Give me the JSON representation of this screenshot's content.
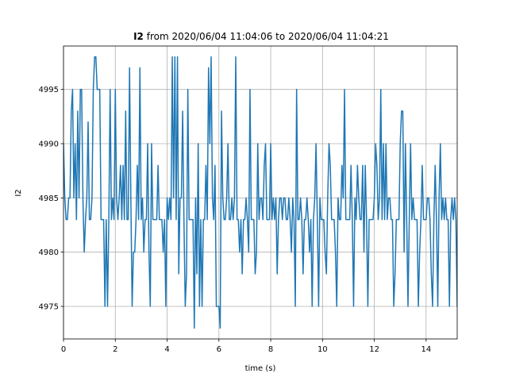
{
  "chart_data": {
    "type": "line",
    "title_bold": "I2",
    "title_rest": " from 2020/06/04 11:04:06 to 2020/06/04 11:04:21",
    "xlabel": "time (s)",
    "ylabel": "I2",
    "xlim": [
      0,
      15.2
    ],
    "ylim": [
      4972,
      4999
    ],
    "xticks": [
      0,
      2,
      4,
      6,
      8,
      10,
      12,
      14
    ],
    "xtick_labels": [
      "0",
      "2",
      "4",
      "6",
      "8",
      "10",
      "12",
      "14"
    ],
    "yticks": [
      4975,
      4980,
      4985,
      4990,
      4995
    ],
    "ytick_labels": [
      "4975",
      "4980",
      "4985",
      "4990",
      "4995"
    ],
    "grid": true,
    "color": "#1f77b4",
    "series": [
      {
        "x": [
          0.0,
          0.05,
          0.1,
          0.15,
          0.2,
          0.25,
          0.3,
          0.35,
          0.4,
          0.45,
          0.5,
          0.55,
          0.6,
          0.65,
          0.7,
          0.75,
          0.8,
          0.85,
          0.9,
          0.95,
          1.0,
          1.05,
          1.1,
          1.15,
          1.2,
          1.25,
          1.3,
          1.35,
          1.4,
          1.45,
          1.5,
          1.55,
          1.6,
          1.65,
          1.7,
          1.75,
          1.8,
          1.85,
          1.9,
          1.95,
          2.0,
          2.05,
          2.1,
          2.15,
          2.2,
          2.25,
          2.3,
          2.35,
          2.4,
          2.45,
          2.5,
          2.55,
          2.6,
          2.65,
          2.7,
          2.75,
          2.8,
          2.85,
          2.9,
          2.95,
          3.0,
          3.05,
          3.1,
          3.15,
          3.2,
          3.25,
          3.3,
          3.35,
          3.4,
          3.45,
          3.5,
          3.55,
          3.6,
          3.65,
          3.7,
          3.75,
          3.8,
          3.85,
          3.9,
          3.95,
          4.0,
          4.05,
          4.1,
          4.15,
          4.2,
          4.25,
          4.3,
          4.35,
          4.4,
          4.45,
          4.5,
          4.55,
          4.6,
          4.65,
          4.7,
          4.75,
          4.8,
          4.85,
          4.9,
          4.95,
          5.0,
          5.05,
          5.1,
          5.15,
          5.2,
          5.25,
          5.3,
          5.35,
          5.4,
          5.45,
          5.5,
          5.55,
          5.6,
          5.65,
          5.7,
          5.75,
          5.8,
          5.85,
          5.9,
          5.95,
          6.0,
          6.05,
          6.1,
          6.15,
          6.2,
          6.25,
          6.3,
          6.35,
          6.4,
          6.45,
          6.5,
          6.55,
          6.6,
          6.65,
          6.7,
          6.75,
          6.8,
          6.85,
          6.9,
          6.95,
          7.0,
          7.05,
          7.1,
          7.15,
          7.2,
          7.25,
          7.3,
          7.35,
          7.4,
          7.45,
          7.5,
          7.55,
          7.6,
          7.65,
          7.7,
          7.75,
          7.8,
          7.85,
          7.9,
          7.95,
          8.0,
          8.05,
          8.1,
          8.15,
          8.2,
          8.25,
          8.3,
          8.35,
          8.4,
          8.45,
          8.5,
          8.55,
          8.6,
          8.65,
          8.7,
          8.75,
          8.8,
          8.85,
          8.9,
          8.95,
          9.0,
          9.05,
          9.1,
          9.15,
          9.2,
          9.25,
          9.3,
          9.35,
          9.4,
          9.45,
          9.5,
          9.55,
          9.6,
          9.65,
          9.7,
          9.75,
          9.8,
          9.85,
          9.9,
          9.95,
          10.0,
          10.05,
          10.1,
          10.15,
          10.2,
          10.25,
          10.3,
          10.35,
          10.4,
          10.45,
          10.5,
          10.55,
          10.6,
          10.65,
          10.7,
          10.75,
          10.8,
          10.85,
          10.9,
          10.95,
          11.0,
          11.05,
          11.1,
          11.15,
          11.2,
          11.25,
          11.3,
          11.35,
          11.4,
          11.45,
          11.5,
          11.55,
          11.6,
          11.65,
          11.7,
          11.75,
          11.8,
          11.85,
          11.9,
          11.95,
          12.0,
          12.05,
          12.1,
          12.15,
          12.2,
          12.25,
          12.3,
          12.35,
          12.4,
          12.45,
          12.5,
          12.55,
          12.6,
          12.65,
          12.7,
          12.75,
          12.8,
          12.85,
          12.9,
          12.95,
          13.0,
          13.05,
          13.1,
          13.15,
          13.2,
          13.25,
          13.3,
          13.35,
          13.4,
          13.45,
          13.5,
          13.55,
          13.6,
          13.65,
          13.7,
          13.75,
          13.8,
          13.85,
          13.9,
          13.95,
          14.0,
          14.05,
          14.1,
          14.15,
          14.2,
          14.25,
          14.3,
          14.35,
          14.4,
          14.45,
          14.5,
          14.55,
          14.6,
          14.65,
          14.7,
          14.75,
          14.8,
          14.85,
          14.9,
          14.95,
          15.0,
          15.05,
          15.1,
          15.15,
          15.2
        ],
        "values": [
          4990,
          4985,
          4983,
          4983,
          4985,
          4985,
          4993,
          4995,
          4985,
          4990,
          4983,
          4993,
          4985,
          4995,
          4995,
          4985,
          4980,
          4983,
          4985,
          4992,
          4983,
          4983,
          4985,
          4995,
          4998,
          4998,
          4995,
          4995,
          4995,
          4983,
          4983,
          4983,
          4975,
          4983,
          4975,
          4983,
          4995,
          4983,
          4985,
          4983,
          4995,
          4985,
          4983,
          4985,
          4988,
          4983,
          4988,
          4983,
          4993,
          4983,
          4983,
          4997,
          4985,
          4975,
          4980,
          4980,
          4983,
          4988,
          4983,
          4997,
          4983,
          4985,
          4980,
          4983,
          4983,
          4990,
          4980,
          4975,
          4990,
          4983,
          4983,
          4983,
          4983,
          4988,
          4983,
          4983,
          4983,
          4980,
          4983,
          4975,
          4985,
          4983,
          4985,
          4983,
          4998,
          4985,
          4998,
          4983,
          4998,
          4978,
          4985,
          4985,
          4993,
          4983,
          4975,
          4978,
          4995,
          4983,
          4983,
          4983,
          4983,
          4973,
          4985,
          4978,
          4990,
          4975,
          4983,
          4975,
          4983,
          4983,
          4988,
          4983,
          4997,
          4990,
          4998,
          4985,
          4983,
          4988,
          4975,
          4975,
          4975,
          4973,
          4993,
          4985,
          4983,
          4983,
          4985,
          4990,
          4983,
          4983,
          4985,
          4983,
          4985,
          4998,
          4983,
          4983,
          4980,
          4983,
          4978,
          4983,
          4983,
          4985,
          4983,
          4980,
          4995,
          4983,
          4983,
          4983,
          4978,
          4980,
          4990,
          4983,
          4985,
          4985,
          4983,
          4988,
          4990,
          4983,
          4983,
          4983,
          4990,
          4983,
          4985,
          4983,
          4985,
          4978,
          4983,
          4985,
          4985,
          4983,
          4985,
          4985,
          4983,
          4983,
          4985,
          4983,
          4980,
          4985,
          4983,
          4975,
          4995,
          4983,
          4983,
          4985,
          4983,
          4978,
          4983,
          4983,
          4985,
          4983,
          4980,
          4983,
          4975,
          4983,
          4985,
          4990,
          4983,
          4975,
          4985,
          4983,
          4983,
          4983,
          4980,
          4978,
          4985,
          4990,
          4988,
          4983,
          4983,
          4983,
          4980,
          4975,
          4985,
          4983,
          4983,
          4988,
          4985,
          4995,
          4983,
          4983,
          4983,
          4983,
          4988,
          4983,
          4975,
          4985,
          4983,
          4988,
          4985,
          4983,
          4983,
          4988,
          4980,
          4988,
          4983,
          4975,
          4983,
          4983,
          4983,
          4983,
          4985,
          4990,
          4988,
          4983,
          4985,
          4995,
          4983,
          4990,
          4983,
          4990,
          4983,
          4985,
          4985,
          4983,
          4983,
          4975,
          4978,
          4983,
          4983,
          4983,
          4990,
          4993,
          4993,
          4980,
          4990,
          4983,
          4975,
          4983,
          4990,
          4983,
          4985,
          4983,
          4983,
          4983,
          4975,
          4980,
          4983,
          4988,
          4983,
          4983,
          4983,
          4985,
          4985,
          4983,
          4978,
          4975,
          4983,
          4988,
          4983,
          4975,
          4985,
          4990,
          4983,
          4985,
          4983,
          4985,
          4983,
          4983,
          4975,
          4983,
          4985,
          4983,
          4985,
          4983,
          4975
        ]
      }
    ]
  }
}
